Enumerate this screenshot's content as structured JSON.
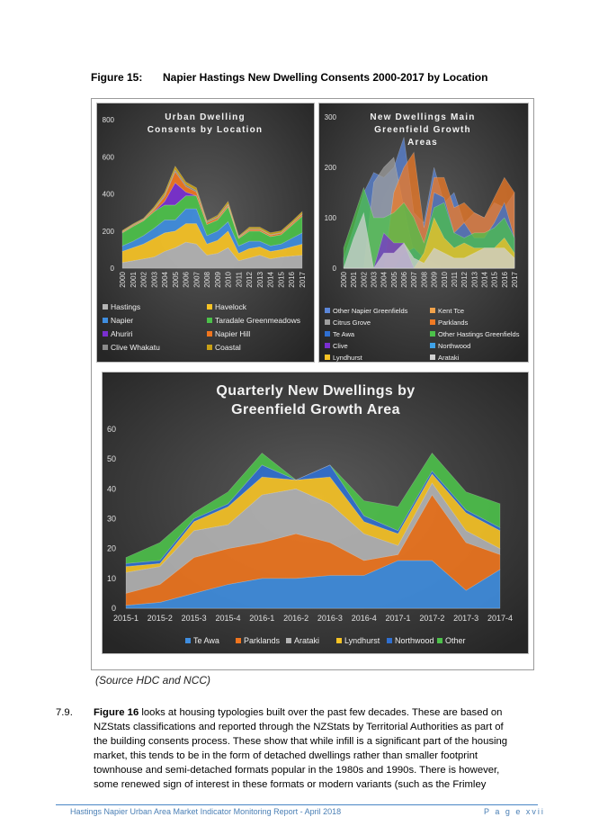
{
  "figure": {
    "number": "Figure 15:",
    "title": "Napier Hastings New Dwelling Consents 2000-2017 by Location",
    "source": "(Source HDC and NCC)"
  },
  "paragraph": {
    "number": "7.9.",
    "bold_lead": "Figure 16",
    "lines": [
      " looks at housing typologies built over the past few decades. These are based on",
      "NZStats classifications and reported through the NZStats by Territorial Authorities as part of",
      "the building consents process. These show that while infill is a significant part of the housing",
      "market, this tends to be in the form of detached dwellings rather than smaller footprint",
      "townhouse and semi-detached formats popular in the 1980s and 1990s. There is however,",
      "some renewed sign of interest in these formats or modern variants (such as the Frimley"
    ]
  },
  "footer": {
    "left": "Hastings Napier Urban Area Market Indicator Monitoring Report - April 2018",
    "right": "P a g e   xvii"
  },
  "chart_data": [
    {
      "type": "area",
      "title": "Urban Dwelling Consents by Location",
      "stacked": true,
      "x": [
        "2000",
        "2001",
        "2002",
        "2003",
        "2004",
        "2005",
        "2006",
        "2007",
        "2008",
        "2009",
        "2010",
        "2011",
        "2012",
        "2013",
        "2014",
        "2015",
        "2016",
        "2017"
      ],
      "ylim": [
        0,
        800
      ],
      "yticks": [
        0,
        200,
        400,
        600,
        800
      ],
      "legend": "bottom",
      "series": [
        {
          "name": "Hastings",
          "color": "#b4b4b4",
          "values": [
            30,
            40,
            50,
            60,
            90,
            110,
            140,
            130,
            70,
            80,
            110,
            40,
            55,
            70,
            50,
            60,
            65,
            70
          ]
        },
        {
          "name": "Havelock",
          "color": "#f7c325",
          "values": [
            60,
            70,
            80,
            100,
            100,
            90,
            100,
            110,
            60,
            70,
            90,
            40,
            50,
            45,
            40,
            40,
            50,
            60
          ]
        },
        {
          "name": "Napier",
          "color": "#3f8ee0",
          "values": [
            30,
            35,
            45,
            55,
            70,
            60,
            80,
            80,
            45,
            50,
            50,
            40,
            40,
            30,
            30,
            30,
            45,
            60
          ]
        },
        {
          "name": "Taradale Greenmeadows",
          "color": "#4cc14a",
          "values": [
            70,
            80,
            80,
            90,
            80,
            80,
            70,
            70,
            60,
            60,
            80,
            40,
            55,
            55,
            50,
            50,
            70,
            90
          ]
        },
        {
          "name": "Ahuriri",
          "color": "#7a2fd0",
          "values": [
            0,
            0,
            0,
            0,
            20,
            120,
            20,
            0,
            0,
            0,
            0,
            0,
            0,
            0,
            0,
            0,
            0,
            0
          ]
        },
        {
          "name": "Napier Hill",
          "color": "#f0751e",
          "values": [
            5,
            5,
            5,
            10,
            25,
            60,
            30,
            20,
            10,
            10,
            10,
            5,
            8,
            8,
            8,
            8,
            8,
            10
          ]
        },
        {
          "name": "Clive Whakatu",
          "color": "#8a8a8a",
          "values": [
            3,
            3,
            3,
            5,
            8,
            10,
            10,
            8,
            5,
            5,
            5,
            3,
            3,
            3,
            3,
            3,
            3,
            3
          ]
        },
        {
          "name": "Coastal",
          "color": "#c8a016",
          "values": [
            5,
            5,
            5,
            10,
            15,
            20,
            15,
            15,
            5,
            10,
            15,
            5,
            10,
            10,
            10,
            10,
            10,
            12
          ]
        }
      ]
    },
    {
      "type": "area",
      "title": "New Dwellings Main Greenfield Growth Areas",
      "stacked": false,
      "x": [
        "2000",
        "2001",
        "2002",
        "2003",
        "2004",
        "2005",
        "2006",
        "2007",
        "2008",
        "2009",
        "2010",
        "2011",
        "2012",
        "2013",
        "2014",
        "2015",
        "2016",
        "2017"
      ],
      "ylim": [
        0,
        300
      ],
      "yticks": [
        0,
        100,
        200,
        300
      ],
      "legend": "bottom",
      "series": [
        {
          "name": "Other Napier Greenfields",
          "color": "#5b86d8",
          "values": [
            20,
            80,
            150,
            190,
            180,
            200,
            260,
            110,
            90,
            200,
            130,
            150,
            90,
            110,
            100,
            130,
            120,
            150
          ]
        },
        {
          "name": "Kent Tce",
          "color": "#f2a24a",
          "values": [
            0,
            0,
            0,
            0,
            0,
            0,
            0,
            0,
            0,
            0,
            0,
            0,
            0,
            0,
            0,
            0,
            0,
            0
          ]
        },
        {
          "name": "Citrus Grove",
          "color": "#9e9e9e",
          "values": [
            0,
            0,
            0,
            170,
            200,
            220,
            120,
            30,
            20,
            10,
            0,
            0,
            0,
            0,
            0,
            0,
            0,
            0
          ]
        },
        {
          "name": "Parklands",
          "color": "#f07a24",
          "values": [
            0,
            0,
            0,
            0,
            0,
            150,
            200,
            230,
            80,
            180,
            180,
            120,
            130,
            110,
            100,
            140,
            180,
            150
          ]
        },
        {
          "name": "Te Awa",
          "color": "#2f6fd0",
          "values": [
            0,
            0,
            0,
            0,
            0,
            0,
            30,
            40,
            20,
            150,
            140,
            70,
            90,
            60,
            60,
            90,
            130,
            60
          ]
        },
        {
          "name": "Other Hastings Greenfields",
          "color": "#4cc14a",
          "values": [
            40,
            100,
            160,
            100,
            100,
            110,
            130,
            100,
            50,
            120,
            130,
            70,
            60,
            70,
            70,
            80,
            100,
            60
          ]
        },
        {
          "name": "Clive",
          "color": "#7a2fd0",
          "values": [
            0,
            0,
            0,
            0,
            70,
            50,
            50,
            0,
            0,
            0,
            0,
            0,
            0,
            0,
            0,
            0,
            0,
            0
          ]
        },
        {
          "name": "Northwood",
          "color": "#3fa2e8",
          "values": [
            0,
            0,
            0,
            0,
            0,
            0,
            0,
            0,
            0,
            0,
            0,
            0,
            0,
            0,
            0,
            0,
            0,
            0
          ]
        },
        {
          "name": "Lyndhurst",
          "color": "#f7c325",
          "values": [
            0,
            0,
            0,
            0,
            0,
            0,
            0,
            0,
            30,
            100,
            60,
            40,
            50,
            40,
            40,
            40,
            60,
            30
          ]
        },
        {
          "name": "Arataki",
          "color": "#d0d0d0",
          "values": [
            0,
            60,
            110,
            0,
            30,
            30,
            50,
            20,
            10,
            40,
            30,
            20,
            20,
            30,
            40,
            40,
            40,
            20
          ]
        }
      ]
    },
    {
      "type": "area",
      "title": "Quarterly New Dwellings by Greenfield Growth Area",
      "stacked": true,
      "x": [
        "2015-1",
        "2015-2",
        "2015-3",
        "2015-4",
        "2016-1",
        "2016-2",
        "2016-3",
        "2016-4",
        "2017-1",
        "2017-2",
        "2017-3",
        "2017-4"
      ],
      "ylim": [
        0,
        60
      ],
      "yticks": [
        0,
        10,
        20,
        30,
        40,
        50,
        60
      ],
      "legend": "bottom",
      "series": [
        {
          "name": "Te Awa",
          "color": "#3f8ee0",
          "values": [
            1,
            2,
            5,
            8,
            10,
            10,
            11,
            11,
            16,
            16,
            6,
            13
          ]
        },
        {
          "name": "Parklands",
          "color": "#f0751e",
          "values": [
            4,
            6,
            12,
            12,
            12,
            15,
            11,
            5,
            2,
            22,
            16,
            5
          ]
        },
        {
          "name": "Arataki",
          "color": "#b4b4b4",
          "values": [
            7,
            6,
            9,
            8,
            16,
            15,
            13,
            9,
            3,
            4,
            4,
            2
          ]
        },
        {
          "name": "Lyndhurst",
          "color": "#f7c325",
          "values": [
            2,
            1,
            3,
            6,
            6,
            3,
            9,
            4,
            4,
            3,
            6,
            6
          ]
        },
        {
          "name": "Northwood",
          "color": "#2f6fd0",
          "values": [
            1,
            1,
            1,
            1,
            4,
            0,
            4,
            2,
            1,
            1,
            1,
            1
          ]
        },
        {
          "name": "Other",
          "color": "#4cc14a",
          "values": [
            2,
            6,
            2,
            4,
            4,
            0,
            0,
            5,
            8,
            6,
            6,
            8
          ]
        }
      ]
    }
  ]
}
